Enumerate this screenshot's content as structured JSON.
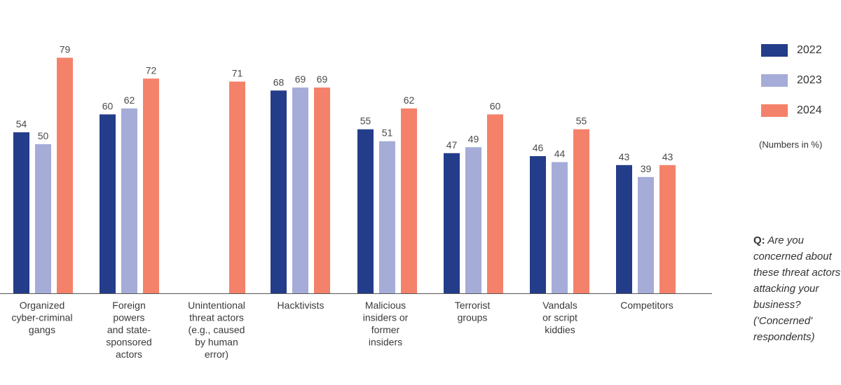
{
  "chart_data": {
    "type": "bar",
    "categories": [
      [
        "Organized",
        "cyber-criminal",
        "gangs"
      ],
      [
        "Foreign",
        "powers",
        "and state-",
        "sponsored",
        "actors"
      ],
      [
        "Unintentional",
        "threat actors",
        "(e.g., caused",
        "by human",
        "error)"
      ],
      [
        "Hacktivists"
      ],
      [
        "Malicious",
        "insiders or",
        "former",
        "insiders"
      ],
      [
        "Terrorist",
        "groups"
      ],
      [
        "Vandals",
        "or script",
        "kiddies"
      ],
      [
        "Competitors"
      ]
    ],
    "series": [
      {
        "name": "2022",
        "color": "#243d8a",
        "values": [
          54,
          60,
          null,
          68,
          55,
          47,
          46,
          43
        ]
      },
      {
        "name": "2023",
        "color": "#a5acd8",
        "values": [
          50,
          62,
          null,
          69,
          51,
          49,
          44,
          39
        ]
      },
      {
        "name": "2024",
        "color": "#f4826a",
        "values": [
          79,
          72,
          71,
          69,
          62,
          60,
          55,
          43
        ]
      }
    ],
    "ylim": [
      0,
      100
    ],
    "legend_position": "right",
    "note": "(Numbers in %)",
    "question": {
      "prefix": "Q:",
      "text": "Are you concerned about these threat actors attacking your business? ('Concerned' respondents)"
    }
  }
}
